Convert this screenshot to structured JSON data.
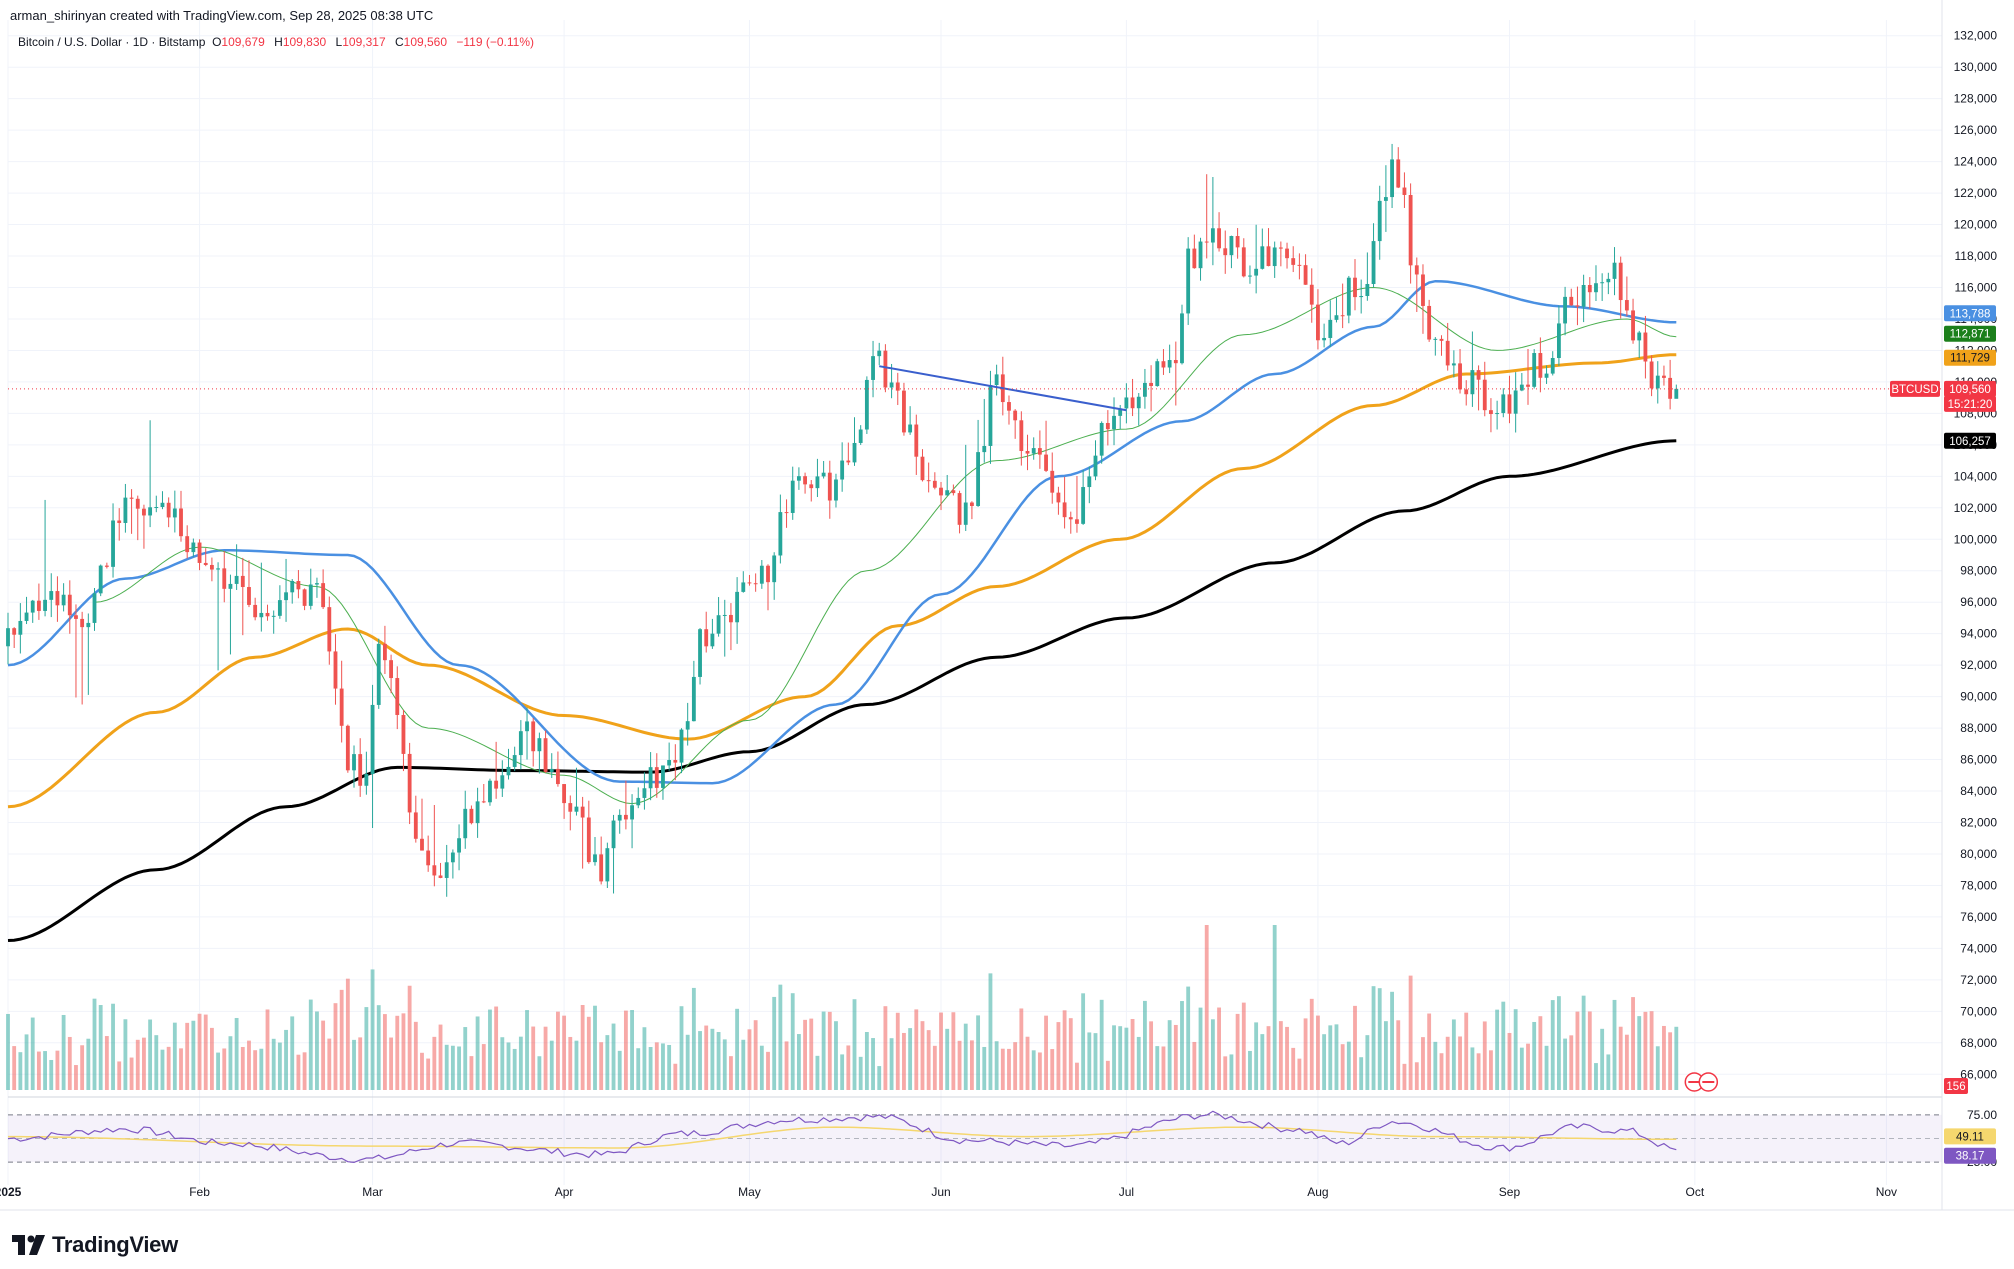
{
  "header": {
    "credit": "arman_shirinyan created with TradingView.com, Sep 28, 2025 08:38 UTC",
    "symbol": "Bitcoin / U.S. Dollar · 1D · Bitstamp",
    "o_label": "O",
    "o_value": "109,679",
    "h_label": "H",
    "h_value": "109,830",
    "l_label": "L",
    "l_value": "109,317",
    "c_label": "C",
    "c_value": "109,560",
    "change": "−119 (−0.11%)"
  },
  "badges": {
    "symbol": "BTCUSD",
    "price": "109,560",
    "countdown": "15:21:20",
    "ma50": "113,788",
    "ma20": "112,871",
    "ma100": "111,729",
    "ma200": "106,257",
    "volume": "156",
    "rsi_ma": "49.11",
    "rsi": "38.17"
  },
  "branding": {
    "logo_text": "TradingView"
  },
  "colors": {
    "up": "#26a69a",
    "down": "#ef5350",
    "ma20": "#4caf50",
    "ma50": "#4a90e2",
    "ma100": "#f0a21a",
    "ma200": "#000000",
    "trendline": "#3a5fcd",
    "rsi": "#7e57c2",
    "rsi_ma": "#f5d76e"
  },
  "chart_data": [
    {
      "type": "candlestick",
      "title": "Bitcoin / U.S. Dollar · 1D · Bitstamp",
      "y_axis": {
        "ticks": [
          66000,
          68000,
          70000,
          72000,
          74000,
          76000,
          78000,
          80000,
          82000,
          84000,
          86000,
          88000,
          90000,
          92000,
          94000,
          96000,
          98000,
          100000,
          102000,
          104000,
          106000,
          108000,
          110000,
          112000,
          114000,
          116000,
          118000,
          120000,
          122000,
          124000,
          126000,
          128000,
          130000,
          132000
        ],
        "tick_labels": [
          "66,000",
          "68,000",
          "70,000",
          "72,000",
          "74,000",
          "76,000",
          "78,000",
          "80,000",
          "82,000",
          "84,000",
          "86,000",
          "88,000",
          "90,000",
          "92,000",
          "94,000",
          "96,000",
          "98,000",
          "100,000",
          "102,000",
          "104,000",
          "106,000",
          "108,000",
          "110,000",
          "112,000",
          "114,000",
          "116,000",
          "118,000",
          "120,000",
          "122,000",
          "124,000",
          "126,000",
          "128,000",
          "130,000",
          "132,000"
        ],
        "range": [
          65000,
          133000
        ]
      },
      "x_axis": {
        "range": [
          "2025-01-01",
          "2025-11-10"
        ],
        "ticks": [
          "2025-01-01",
          "2025-02-01",
          "2025-03-01",
          "2025-04-01",
          "2025-05-01",
          "2025-06-01",
          "2025-07-01",
          "2025-08-01",
          "2025-09-01",
          "2025-10-01",
          "2025-11-01"
        ],
        "tick_labels": [
          "2025",
          "Feb",
          "Mar",
          "Apr",
          "May",
          "Jun",
          "Jul",
          "Aug",
          "Sep",
          "Oct",
          "Nov"
        ]
      },
      "ohlc_keyframes": [
        {
          "date": "2025-01-01",
          "close": 93500,
          "high": 95000,
          "low": 92500
        },
        {
          "date": "2025-01-07",
          "close": 96500,
          "high": 102500,
          "low": 95500
        },
        {
          "date": "2025-01-13",
          "close": 94500,
          "high": 97000,
          "low": 89500
        },
        {
          "date": "2025-01-20",
          "close": 102000,
          "high": 109200,
          "low": 100500
        },
        {
          "date": "2025-01-27",
          "close": 101500,
          "high": 106500,
          "low": 97700
        },
        {
          "date": "2025-02-03",
          "close": 97500,
          "high": 101500,
          "low": 91500
        },
        {
          "date": "2025-02-10",
          "close": 96000,
          "high": 98500,
          "low": 94500
        },
        {
          "date": "2025-02-20",
          "close": 96500,
          "high": 99000,
          "low": 95000
        },
        {
          "date": "2025-02-25",
          "close": 86000,
          "high": 91500,
          "low": 82500
        },
        {
          "date": "2025-02-28",
          "close": 84500,
          "high": 86500,
          "low": 78300
        },
        {
          "date": "2025-03-02",
          "close": 93500,
          "high": 95000,
          "low": 85000
        },
        {
          "date": "2025-03-10",
          "close": 78500,
          "high": 83000,
          "low": 76600
        },
        {
          "date": "2025-03-20",
          "close": 84000,
          "high": 87000,
          "low": 83500
        },
        {
          "date": "2025-03-26",
          "close": 87500,
          "high": 88700,
          "low": 86000
        },
        {
          "date": "2025-04-02",
          "close": 82500,
          "high": 86000,
          "low": 81500
        },
        {
          "date": "2025-04-07",
          "close": 79000,
          "high": 81000,
          "low": 74600
        },
        {
          "date": "2025-04-10",
          "close": 83000,
          "high": 84500,
          "low": 78500
        },
        {
          "date": "2025-04-15",
          "close": 84600,
          "high": 86000,
          "low": 83800
        },
        {
          "date": "2025-04-21",
          "close": 87500,
          "high": 88500,
          "low": 85000
        },
        {
          "date": "2025-04-23",
          "close": 93500,
          "high": 94500,
          "low": 91500
        },
        {
          "date": "2025-05-02",
          "close": 97000,
          "high": 98000,
          "low": 94000
        },
        {
          "date": "2025-05-09",
          "close": 103000,
          "high": 104500,
          "low": 101500
        },
        {
          "date": "2025-05-15",
          "close": 103500,
          "high": 105000,
          "low": 101500
        },
        {
          "date": "2025-05-22",
          "close": 111000,
          "high": 112000,
          "low": 107500
        },
        {
          "date": "2025-05-30",
          "close": 104000,
          "high": 106500,
          "low": 103500
        },
        {
          "date": "2025-06-05",
          "close": 101500,
          "high": 106000,
          "low": 100500
        },
        {
          "date": "2025-06-10",
          "close": 110000,
          "high": 110500,
          "low": 108000
        },
        {
          "date": "2025-06-17",
          "close": 104500,
          "high": 108000,
          "low": 103500
        },
        {
          "date": "2025-06-22",
          "close": 100500,
          "high": 103500,
          "low": 98200
        },
        {
          "date": "2025-06-27",
          "close": 107000,
          "high": 108500,
          "low": 106000
        },
        {
          "date": "2025-07-03",
          "close": 109500,
          "high": 110500,
          "low": 108000
        },
        {
          "date": "2025-07-09",
          "close": 111000,
          "high": 112000,
          "low": 108500
        },
        {
          "date": "2025-07-11",
          "close": 117500,
          "high": 118500,
          "low": 111000
        },
        {
          "date": "2025-07-14",
          "close": 119800,
          "high": 123200,
          "low": 117500
        },
        {
          "date": "2025-07-21",
          "close": 117500,
          "high": 120000,
          "low": 116000
        },
        {
          "date": "2025-07-28",
          "close": 118000,
          "high": 119800,
          "low": 117000
        },
        {
          "date": "2025-08-02",
          "close": 113000,
          "high": 115000,
          "low": 112000
        },
        {
          "date": "2025-08-08",
          "close": 116500,
          "high": 117500,
          "low": 115500
        },
        {
          "date": "2025-08-13",
          "close": 123500,
          "high": 124500,
          "low": 120000
        },
        {
          "date": "2025-08-19",
          "close": 113500,
          "high": 117000,
          "low": 112500
        },
        {
          "date": "2025-08-25",
          "close": 110000,
          "high": 113500,
          "low": 108500
        },
        {
          "date": "2025-08-31",
          "close": 108500,
          "high": 109500,
          "low": 107300
        },
        {
          "date": "2025-09-06",
          "close": 111000,
          "high": 113000,
          "low": 110000
        },
        {
          "date": "2025-09-12",
          "close": 115500,
          "high": 116500,
          "low": 114000
        },
        {
          "date": "2025-09-18",
          "close": 116800,
          "high": 117900,
          "low": 115500
        },
        {
          "date": "2025-09-22",
          "close": 113000,
          "high": 115500,
          "low": 111500
        },
        {
          "date": "2025-09-25",
          "close": 109300,
          "high": 111500,
          "low": 108700
        },
        {
          "date": "2025-09-28",
          "close": 109560,
          "high": 109830,
          "low": 109317
        }
      ],
      "moving_averages": {
        "ma20_keyframes": [
          {
            "date": "2025-01-15",
            "value": 96000
          },
          {
            "date": "2025-02-01",
            "value": 99500
          },
          {
            "date": "2025-02-20",
            "value": 97000
          },
          {
            "date": "2025-03-10",
            "value": 88000
          },
          {
            "date": "2025-04-01",
            "value": 85000
          },
          {
            "date": "2025-04-12",
            "value": 83200
          },
          {
            "date": "2025-05-01",
            "value": 88500
          },
          {
            "date": "2025-05-20",
            "value": 98000
          },
          {
            "date": "2025-06-10",
            "value": 105000
          },
          {
            "date": "2025-07-01",
            "value": 107000
          },
          {
            "date": "2025-07-20",
            "value": 113000
          },
          {
            "date": "2025-08-10",
            "value": 116000
          },
          {
            "date": "2025-08-30",
            "value": 112000
          },
          {
            "date": "2025-09-20",
            "value": 114000
          },
          {
            "date": "2025-09-28",
            "value": 112871
          }
        ],
        "ma50_keyframes": [
          {
            "date": "2025-01-01",
            "value": 92000
          },
          {
            "date": "2025-01-20",
            "value": 97500
          },
          {
            "date": "2025-02-05",
            "value": 99300
          },
          {
            "date": "2025-02-25",
            "value": 99000
          },
          {
            "date": "2025-03-15",
            "value": 92000
          },
          {
            "date": "2025-04-10",
            "value": 84600
          },
          {
            "date": "2025-04-25",
            "value": 84500
          },
          {
            "date": "2025-05-15",
            "value": 89500
          },
          {
            "date": "2025-06-01",
            "value": 96500
          },
          {
            "date": "2025-06-20",
            "value": 104000
          },
          {
            "date": "2025-07-10",
            "value": 107500
          },
          {
            "date": "2025-07-25",
            "value": 110500
          },
          {
            "date": "2025-08-10",
            "value": 113500
          },
          {
            "date": "2025-08-20",
            "value": 116400
          },
          {
            "date": "2025-09-10",
            "value": 114800
          },
          {
            "date": "2025-09-28",
            "value": 113788
          }
        ],
        "ma100_keyframes": [
          {
            "date": "2025-01-01",
            "value": 83000
          },
          {
            "date": "2025-01-25",
            "value": 89000
          },
          {
            "date": "2025-02-10",
            "value": 92500
          },
          {
            "date": "2025-02-25",
            "value": 94300
          },
          {
            "date": "2025-03-10",
            "value": 92000
          },
          {
            "date": "2025-04-01",
            "value": 88800
          },
          {
            "date": "2025-04-21",
            "value": 87300
          },
          {
            "date": "2025-05-10",
            "value": 90000
          },
          {
            "date": "2025-05-25",
            "value": 94500
          },
          {
            "date": "2025-06-10",
            "value": 97000
          },
          {
            "date": "2025-06-30",
            "value": 100000
          },
          {
            "date": "2025-07-20",
            "value": 104500
          },
          {
            "date": "2025-08-10",
            "value": 108500
          },
          {
            "date": "2025-08-25",
            "value": 110500
          },
          {
            "date": "2025-09-15",
            "value": 111200
          },
          {
            "date": "2025-09-28",
            "value": 111729
          }
        ],
        "ma200_keyframes": [
          {
            "date": "2025-01-01",
            "value": 74500
          },
          {
            "date": "2025-01-25",
            "value": 79000
          },
          {
            "date": "2025-02-15",
            "value": 83000
          },
          {
            "date": "2025-03-05",
            "value": 85500
          },
          {
            "date": "2025-03-25",
            "value": 85300
          },
          {
            "date": "2025-04-15",
            "value": 85200
          },
          {
            "date": "2025-05-01",
            "value": 86500
          },
          {
            "date": "2025-05-20",
            "value": 89500
          },
          {
            "date": "2025-06-10",
            "value": 92500
          },
          {
            "date": "2025-07-01",
            "value": 95000
          },
          {
            "date": "2025-07-25",
            "value": 98500
          },
          {
            "date": "2025-08-15",
            "value": 101800
          },
          {
            "date": "2025-09-01",
            "value": 104000
          },
          {
            "date": "2025-09-28",
            "value": 106257
          }
        ]
      },
      "trendline": {
        "from": {
          "date": "2025-05-22",
          "value": 111000
        },
        "to": {
          "date": "2025-07-01",
          "value": 108200
        }
      }
    },
    {
      "type": "bar",
      "title": "Volume",
      "last_value": "156"
    },
    {
      "type": "line",
      "title": "RSI",
      "y_axis": {
        "ticks": [
          25,
          75
        ],
        "tick_labels": [
          "25.00",
          "75.00"
        ],
        "range": [
          22,
          78
        ]
      },
      "rsi_keyframes": [
        {
          "date": "2025-01-01",
          "value": 50
        },
        {
          "date": "2025-01-20",
          "value": 60
        },
        {
          "date": "2025-02-05",
          "value": 45
        },
        {
          "date": "2025-02-28",
          "value": 28
        },
        {
          "date": "2025-03-15",
          "value": 45
        },
        {
          "date": "2025-04-07",
          "value": 33
        },
        {
          "date": "2025-04-20",
          "value": 55
        },
        {
          "date": "2025-05-08",
          "value": 70
        },
        {
          "date": "2025-05-22",
          "value": 73
        },
        {
          "date": "2025-06-05",
          "value": 48
        },
        {
          "date": "2025-06-22",
          "value": 42
        },
        {
          "date": "2025-07-14",
          "value": 75
        },
        {
          "date": "2025-07-28",
          "value": 60
        },
        {
          "date": "2025-08-05",
          "value": 45
        },
        {
          "date": "2025-08-13",
          "value": 68
        },
        {
          "date": "2025-08-31",
          "value": 40
        },
        {
          "date": "2025-09-12",
          "value": 62
        },
        {
          "date": "2025-09-20",
          "value": 58
        },
        {
          "date": "2025-09-28",
          "value": 38.17
        }
      ],
      "rsi_ma_keyframes": [
        {
          "date": "2025-01-01",
          "value": 52
        },
        {
          "date": "2025-03-01",
          "value": 42
        },
        {
          "date": "2025-04-10",
          "value": 40
        },
        {
          "date": "2025-05-15",
          "value": 62
        },
        {
          "date": "2025-06-15",
          "value": 52
        },
        {
          "date": "2025-07-20",
          "value": 62
        },
        {
          "date": "2025-08-20",
          "value": 52
        },
        {
          "date": "2025-09-28",
          "value": 49.11
        }
      ]
    }
  ]
}
